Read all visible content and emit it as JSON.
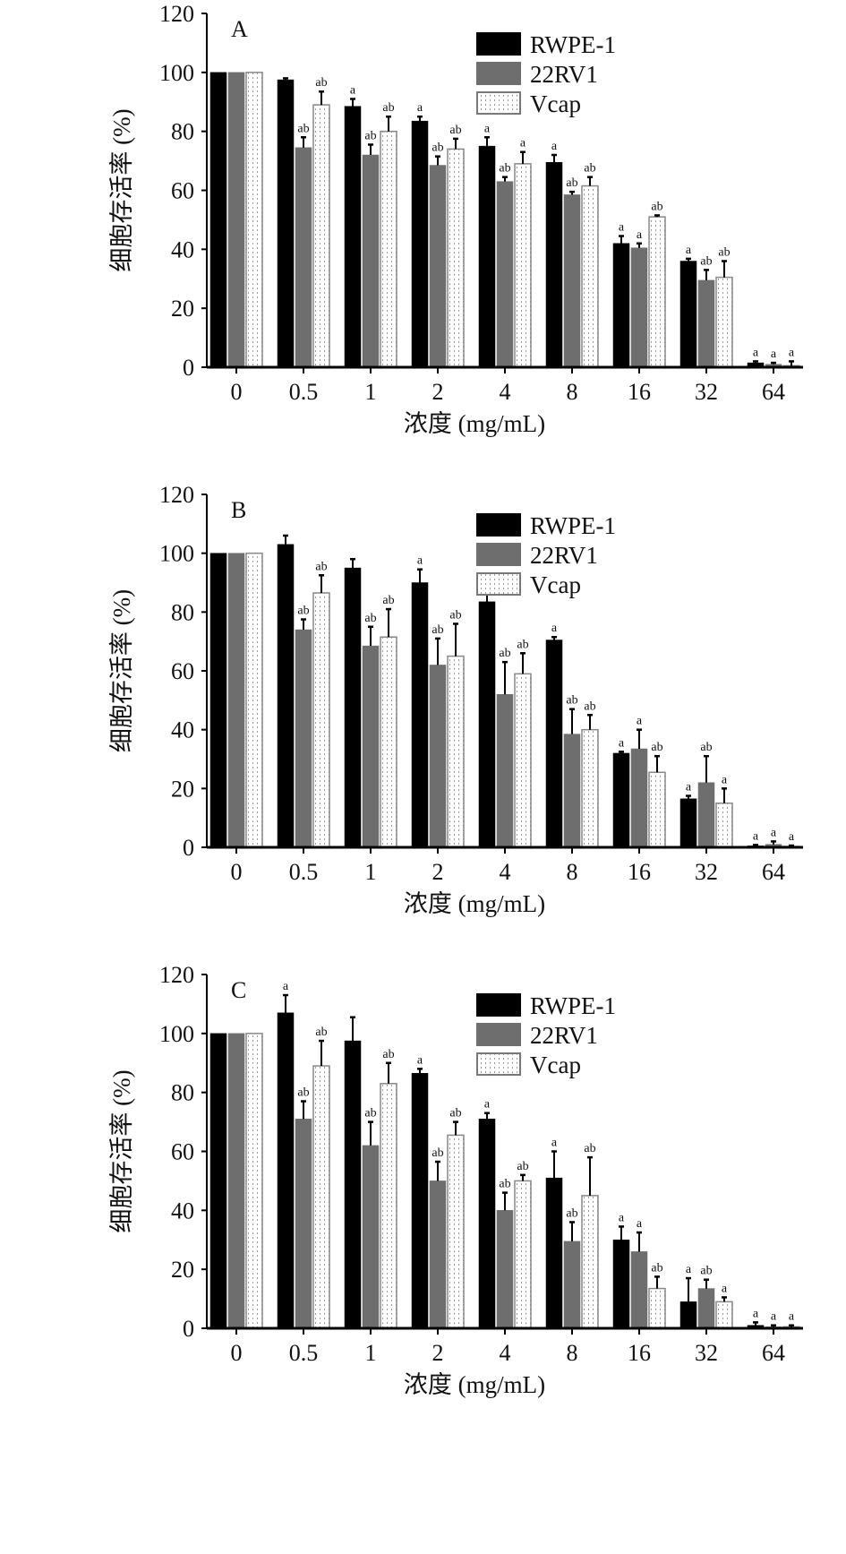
{
  "chart_data": [
    {
      "type": "bar",
      "panel_label": "A",
      "xlabel": "浓度 (mg/mL)",
      "ylabel": "细胞存活率 (%)",
      "categories": [
        "0",
        "0.5",
        "1",
        "2",
        "4",
        "8",
        "16",
        "32",
        "64"
      ],
      "ylim": [
        0,
        120
      ],
      "yticks": [
        0,
        20,
        40,
        60,
        80,
        100,
        120
      ],
      "legend_position": "top-right",
      "series": [
        {
          "name": "RWPE-1",
          "color": "#000000",
          "values": [
            100,
            97.5,
            88.5,
            83.5,
            75,
            69.5,
            42,
            36,
            1.5
          ],
          "errors": [
            0,
            0.5,
            2.5,
            1.5,
            3,
            2.5,
            2.5,
            0.8,
            0.5
          ],
          "sig": [
            "",
            "",
            "a",
            "a",
            "a",
            "a",
            "a",
            "a",
            "a"
          ]
        },
        {
          "name": "22RV1",
          "color": "#6e6e6e",
          "values": [
            100,
            74.5,
            72,
            68.5,
            63,
            58.5,
            40.5,
            29.5,
            1
          ],
          "errors": [
            0,
            3.5,
            3.5,
            3,
            1.5,
            1,
            1.5,
            3.5,
            0.5
          ],
          "sig": [
            "",
            "ab",
            "ab",
            "ab",
            "ab",
            "ab",
            "a",
            "ab",
            "a"
          ]
        },
        {
          "name": "Vcap",
          "color": "#ffffff",
          "values": [
            100,
            89,
            80,
            74,
            69,
            61.5,
            51,
            30.5,
            0.5
          ],
          "errors": [
            0,
            4.5,
            5,
            3.5,
            4,
            3,
            0.5,
            5.5,
            1.5
          ],
          "sig": [
            "",
            "ab",
            "ab",
            "ab",
            "a",
            "ab",
            "ab",
            "ab",
            "a"
          ]
        }
      ]
    },
    {
      "type": "bar",
      "panel_label": "B",
      "xlabel": "浓度 (mg/mL)",
      "ylabel": "细胞存活率 (%)",
      "categories": [
        "0",
        "0.5",
        "1",
        "2",
        "4",
        "8",
        "16",
        "32",
        "64"
      ],
      "ylim": [
        0,
        120
      ],
      "yticks": [
        0,
        20,
        40,
        60,
        80,
        100,
        120
      ],
      "legend_position": "top-right",
      "series": [
        {
          "name": "RWPE-1",
          "color": "#000000",
          "values": [
            100,
            103,
            95,
            90,
            83.5,
            70.5,
            32,
            16.5,
            0.5
          ],
          "errors": [
            0,
            3,
            3,
            4.5,
            3.5,
            1,
            0.5,
            1,
            0.3
          ],
          "sig": [
            "",
            "",
            "",
            "a",
            "a",
            "a",
            "a",
            "a",
            "a"
          ]
        },
        {
          "name": "22RV1",
          "color": "#6e6e6e",
          "values": [
            100,
            74,
            68.5,
            62,
            52,
            38.5,
            33.5,
            22,
            1
          ],
          "errors": [
            0,
            3.5,
            6.5,
            9,
            11,
            8.5,
            6.5,
            9,
            1
          ],
          "sig": [
            "",
            "ab",
            "ab",
            "ab",
            "ab",
            "ab",
            "a",
            "ab",
            "a"
          ]
        },
        {
          "name": "Vcap",
          "color": "#ffffff",
          "values": [
            100,
            86.5,
            71.5,
            65,
            59,
            40,
            25.5,
            15,
            0.3
          ],
          "errors": [
            0,
            6,
            9.5,
            11,
            7,
            5,
            5.5,
            5,
            0.3
          ],
          "sig": [
            "",
            "ab",
            "ab",
            "ab",
            "ab",
            "ab",
            "ab",
            "a",
            "a"
          ]
        }
      ]
    },
    {
      "type": "bar",
      "panel_label": "C",
      "xlabel": "浓度 (mg/mL)",
      "ylabel": "细胞存活率 (%)",
      "categories": [
        "0",
        "0.5",
        "1",
        "2",
        "4",
        "8",
        "16",
        "32",
        "64"
      ],
      "ylim": [
        0,
        120
      ],
      "yticks": [
        0,
        20,
        40,
        60,
        80,
        100,
        120
      ],
      "legend_position": "top-right",
      "series": [
        {
          "name": "RWPE-1",
          "color": "#000000",
          "values": [
            100,
            107,
            97.5,
            86.5,
            71,
            51,
            30,
            9,
            1
          ],
          "errors": [
            0,
            6,
            8,
            1.5,
            2,
            9,
            4.5,
            8,
            1
          ],
          "sig": [
            "",
            "a",
            "",
            "a",
            "a",
            "a",
            "a",
            "a",
            "a"
          ]
        },
        {
          "name": "22RV1",
          "color": "#6e6e6e",
          "values": [
            100,
            71,
            62,
            50,
            40,
            29.5,
            26,
            13.5,
            0.5
          ],
          "errors": [
            0,
            6,
            8,
            6.5,
            6,
            6.5,
            6.5,
            3,
            0.5
          ],
          "sig": [
            "",
            "ab",
            "ab",
            "ab",
            "ab",
            "ab",
            "a",
            "ab",
            "a"
          ]
        },
        {
          "name": "Vcap",
          "color": "#ffffff",
          "values": [
            100,
            89,
            83,
            65.5,
            50,
            45,
            13.5,
            9,
            0.5
          ],
          "errors": [
            0,
            8.5,
            7,
            4.5,
            2,
            13,
            4,
            1.5,
            0.5
          ],
          "sig": [
            "",
            "ab",
            "ab",
            "ab",
            "ab",
            "ab",
            "ab",
            "a",
            "a"
          ]
        }
      ]
    }
  ]
}
